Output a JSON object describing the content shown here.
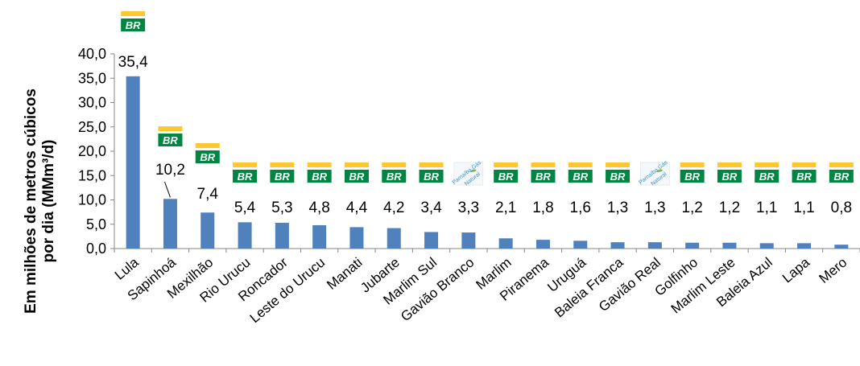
{
  "chart_data": {
    "type": "bar",
    "ylabel_line1": "Em milhões de metros cúbicos",
    "ylabel_line2": "por dia (MMm³/d)",
    "ylim": [
      0,
      40
    ],
    "y_ticks": [
      "0,0",
      "5,0",
      "10,0",
      "15,0",
      "20,0",
      "25,0",
      "30,0",
      "35,0",
      "40,0"
    ],
    "bar_color": "#4f81bd",
    "categories": [
      "Lula",
      "Sapinhoá",
      "Mexilhão",
      "Rio Urucu",
      "Roncador",
      "Leste do Urucu",
      "Manati",
      "Jubarte",
      "Marlim Sul",
      "Gavião Branco",
      "Marlim",
      "Piranema",
      "Uruguá",
      "Baleia Franca",
      "Gavião Real",
      "Golfinho",
      "Marlim Leste",
      "Baleia Azul",
      "Lapa",
      "Mero"
    ],
    "values": [
      35.4,
      10.2,
      7.4,
      5.4,
      5.3,
      4.8,
      4.4,
      4.2,
      3.4,
      3.3,
      2.1,
      1.8,
      1.6,
      1.3,
      1.3,
      1.2,
      1.2,
      1.1,
      1.1,
      0.8
    ],
    "value_labels": [
      "35,4",
      "10,2",
      "7,4",
      "5,4",
      "5,3",
      "4,8",
      "4,4",
      "4,2",
      "3,4",
      "3,3",
      "2,1",
      "1,8",
      "1,6",
      "1,3",
      "1,3",
      "1,2",
      "1,2",
      "1,1",
      "1,1",
      "0,8"
    ],
    "operator_logos": [
      "br-petrobras-logo",
      "br-petrobras-logo",
      "br-petrobras-logo",
      "br-petrobras-logo",
      "br-petrobras-logo",
      "br-petrobras-logo",
      "br-petrobras-logo",
      "br-petrobras-logo",
      "br-petrobras-logo",
      "parnaiba-gas-logo",
      "br-petrobras-logo",
      "br-petrobras-logo",
      "br-petrobras-logo",
      "br-petrobras-logo",
      "parnaiba-gas-logo",
      "br-petrobras-logo",
      "br-petrobras-logo",
      "br-petrobras-logo",
      "br-petrobras-logo",
      "br-petrobras-logo"
    ],
    "logo_text_br": "BR",
    "logo_text_parnaiba": "Parnaíba Gás",
    "logo_text_parnaiba_sub": "Natural",
    "logo_colors": {
      "green": "#008542",
      "yellow": "#fdc82f"
    }
  }
}
